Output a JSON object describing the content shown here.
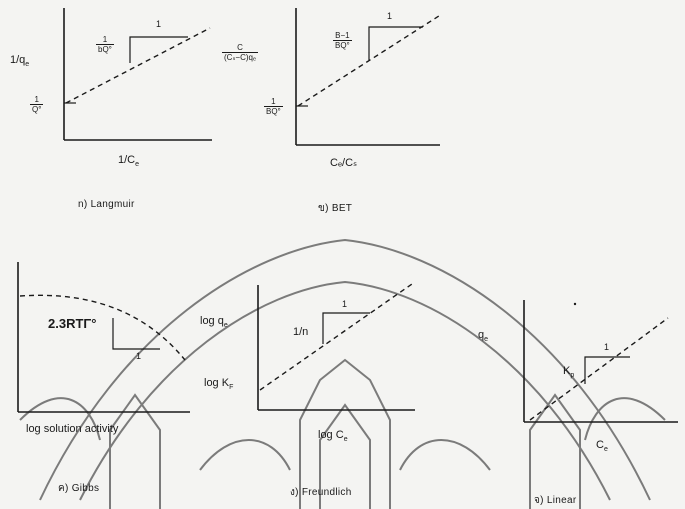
{
  "colors": {
    "ink": "#1a1a1a",
    "paper": "#f4f4f2",
    "watermark": "#c9c5c0"
  },
  "panels": {
    "langmuir": {
      "ylabel": "1/q",
      "ylabel_sub": "e",
      "xlabel": "1/C",
      "xlabel_sub": "e",
      "intercept_num": "1",
      "intercept_den": "Q°",
      "slope_num": "1",
      "slope_den": "bQ°",
      "triangle_label": "1",
      "caption": "n) Langmuir"
    },
    "bet": {
      "ylabel_num": "C",
      "ylabel_den": "(Cₛ−C)qₑ",
      "xlabel": "Cₑ/Cₛ",
      "intercept_num": "1",
      "intercept_den": "BQ°",
      "slope_num": "B−1",
      "slope_den": "BQ°",
      "triangle_label": "1",
      "caption": "ข) BET"
    },
    "gibbs": {
      "slope_label": "2.3RTΓ°",
      "triangle_label": "1",
      "xlabel": "log solution activity",
      "caption": "ค) Gibbs"
    },
    "freundlich": {
      "ylabel": "log q",
      "ylabel_sub": "e",
      "intercept_label": "log K",
      "intercept_sub": "F",
      "slope_label": "1/n",
      "triangle_label": "1",
      "xlabel": "log C",
      "xlabel_sub": "e",
      "caption": "ง) Freundlich"
    },
    "linear": {
      "ylabel": "q",
      "ylabel_sub": "e",
      "slope_label": "K",
      "slope_sub": "p",
      "triangle_label": "1",
      "xlabel": "C",
      "xlabel_sub": "e",
      "caption": "จ) Linear"
    }
  }
}
